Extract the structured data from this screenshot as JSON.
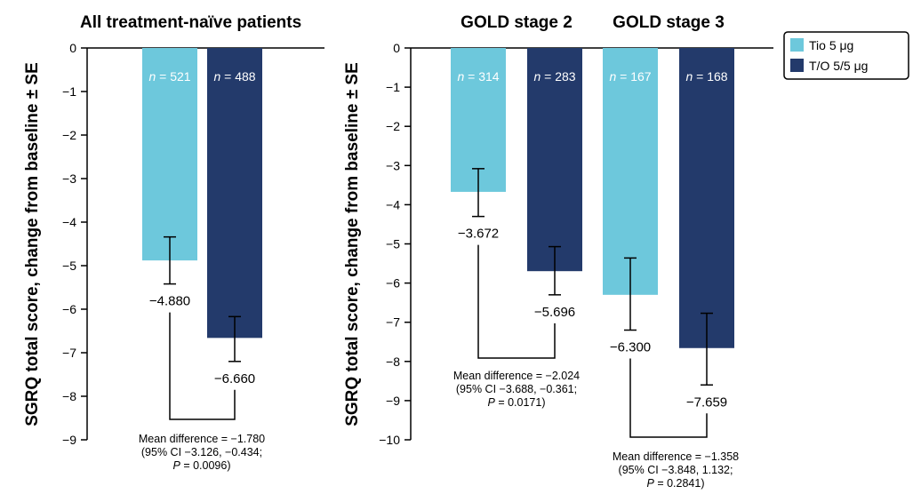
{
  "legend": [
    {
      "label": "Tio 5 μg",
      "color": "#6dc8dc"
    },
    {
      "label": "T/O 5/5 μg",
      "color": "#233a6b"
    }
  ],
  "chart_data": [
    {
      "type": "bar",
      "title": "All treatment-naïve patients",
      "ylabel": "SGRQ total score, change from baseline ± SE",
      "ylim": [
        -9,
        0
      ],
      "yticks": [
        "0",
        "−1",
        "−2",
        "−3",
        "−4",
        "−5",
        "−6",
        "−7",
        "−8",
        "−9"
      ],
      "groups": [
        {
          "name": "",
          "bars": [
            {
              "series": "Tio 5 μg",
              "value": -4.88,
              "label": "−4.880",
              "n": "521",
              "se_low": -5.42,
              "se_high": -4.34
            },
            {
              "series": "T/O 5/5 μg",
              "value": -6.66,
              "label": "−6.660",
              "n": "488",
              "se_low": -7.2,
              "se_high": -6.17
            }
          ],
          "annotation": [
            "Mean difference = −1.780",
            "(95% CI −3.126, −0.434;",
            "P = 0.0096)"
          ]
        }
      ]
    },
    {
      "type": "bar",
      "ylabel": "SGRQ total score, change from baseline ± SE",
      "ylim": [
        -10,
        0
      ],
      "yticks": [
        "0",
        "−1",
        "−2",
        "−3",
        "−4",
        "−5",
        "−6",
        "−7",
        "−8",
        "−9",
        "−10"
      ],
      "groups": [
        {
          "name": "GOLD stage 2",
          "bars": [
            {
              "series": "Tio 5 μg",
              "value": -3.672,
              "label": "−3.672",
              "n": "314",
              "se_low": -4.3,
              "se_high": -3.08
            },
            {
              "series": "T/O 5/5 μg",
              "value": -5.696,
              "label": "−5.696",
              "n": "283",
              "se_low": -6.3,
              "se_high": -5.07
            }
          ],
          "annotation": [
            "Mean difference = −2.024",
            "(95% CI −3.688, −0.361;",
            "P = 0.0171)"
          ]
        },
        {
          "name": "GOLD stage 3",
          "bars": [
            {
              "series": "Tio 5 μg",
              "value": -6.3,
              "label": "−6.300",
              "n": "167",
              "se_low": -7.2,
              "se_high": -5.36
            },
            {
              "series": "T/O 5/5 μg",
              "value": -7.659,
              "label": "−7.659",
              "n": "168",
              "se_low": -8.6,
              "se_high": -6.77
            }
          ],
          "annotation": [
            "Mean difference = −1.358",
            "(95% CI −3.848, 1.132;",
            "P = 0.2841)"
          ]
        }
      ]
    }
  ]
}
